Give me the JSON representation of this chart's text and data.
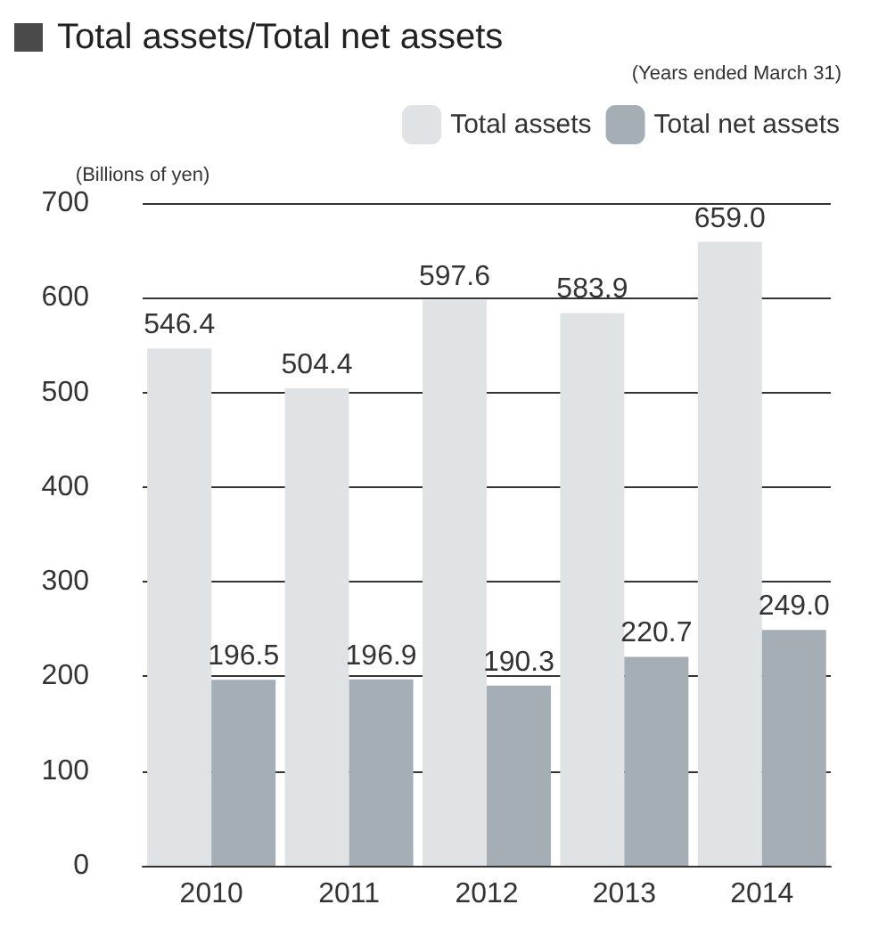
{
  "chart_data": {
    "type": "bar",
    "title": "Total assets/Total net assets",
    "ylabel": "(Billions of yen)",
    "annotations": [
      "(Years ended March 31)"
    ],
    "categories": [
      "2010",
      "2011",
      "2012",
      "2013",
      "2014"
    ],
    "series": [
      {
        "name": "Total assets",
        "color": "#dfe3e6",
        "values": [
          546.4,
          504.4,
          597.6,
          583.9,
          659.0
        ],
        "value_labels": [
          "546.4",
          "504.4",
          "597.6",
          "583.9",
          "659.0"
        ]
      },
      {
        "name": "Total net assets",
        "color": "#a4aeb4",
        "values": [
          196.5,
          196.9,
          190.3,
          220.7,
          249.0
        ],
        "value_labels": [
          "196.5",
          "196.9",
          "190.3",
          "220.7",
          "249.0"
        ]
      }
    ],
    "ylim": [
      0,
      700
    ],
    "yticks": [
      0,
      100,
      200,
      300,
      400,
      500,
      600,
      700
    ],
    "grid": "y",
    "legend": "top right"
  }
}
